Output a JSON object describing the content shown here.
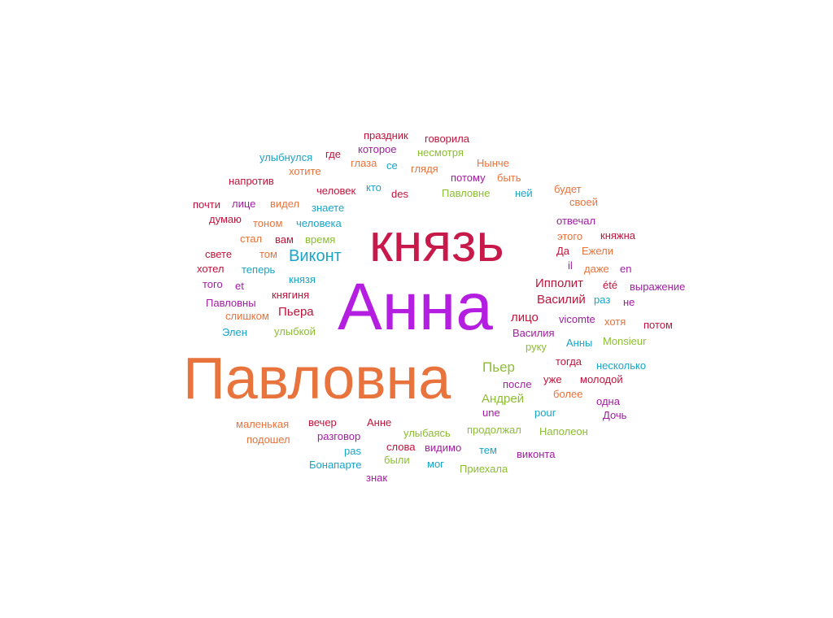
{
  "palette": {
    "crimson": "#c8194b",
    "purple": "#b41ee0",
    "orange": "#e8733c",
    "teal": "#19a5c8",
    "green": "#8cbe32",
    "red": "#c0143c",
    "magenta": "#a01ea0"
  },
  "words": [
    {
      "text": "князь",
      "color": "#c8194b"
    },
    {
      "text": "Анна",
      "color": "#b41ee0"
    },
    {
      "text": "Павловна",
      "color": "#e8733c"
    },
    {
      "text": "Виконт",
      "color": "#19a5c8"
    },
    {
      "text": "праздник",
      "color": "#c0143c"
    },
    {
      "text": "говорила",
      "color": "#c0143c"
    },
    {
      "text": "где",
      "color": "#c0143c"
    },
    {
      "text": "которое",
      "color": "#a01ea0"
    },
    {
      "text": "несмотря",
      "color": "#8cbe32"
    },
    {
      "text": "улыбнулся",
      "color": "#19a5c8"
    },
    {
      "text": "глаза",
      "color": "#e8733c"
    },
    {
      "text": "се",
      "color": "#19a5c8"
    },
    {
      "text": "глядя",
      "color": "#e8733c"
    },
    {
      "text": "Нынче",
      "color": "#e8733c"
    },
    {
      "text": "хотите",
      "color": "#e8733c"
    },
    {
      "text": "потому",
      "color": "#a01ea0"
    },
    {
      "text": "быть",
      "color": "#e8733c"
    },
    {
      "text": "напротив",
      "color": "#c0143c"
    },
    {
      "text": "кто",
      "color": "#19a5c8"
    },
    {
      "text": "человек",
      "color": "#c0143c"
    },
    {
      "text": "des",
      "color": "#c0143c"
    },
    {
      "text": "Павловне",
      "color": "#8cbe32"
    },
    {
      "text": "ней",
      "color": "#19a5c8"
    },
    {
      "text": "будет",
      "color": "#e8733c"
    },
    {
      "text": "почти",
      "color": "#c0143c"
    },
    {
      "text": "лице",
      "color": "#a01ea0"
    },
    {
      "text": "видел",
      "color": "#e8733c"
    },
    {
      "text": "знаете",
      "color": "#19a5c8"
    },
    {
      "text": "своей",
      "color": "#e8733c"
    },
    {
      "text": "думаю",
      "color": "#c0143c"
    },
    {
      "text": "тоном",
      "color": "#e8733c"
    },
    {
      "text": "человека",
      "color": "#19a5c8"
    },
    {
      "text": "отвечал",
      "color": "#a01ea0"
    },
    {
      "text": "этого",
      "color": "#e8733c"
    },
    {
      "text": "княжна",
      "color": "#c0143c"
    },
    {
      "text": "стал",
      "color": "#e8733c"
    },
    {
      "text": "вам",
      "color": "#c0143c"
    },
    {
      "text": "время",
      "color": "#8cbe32"
    },
    {
      "text": "Да",
      "color": "#c0143c"
    },
    {
      "text": "Ежели",
      "color": "#e8733c"
    },
    {
      "text": "свете",
      "color": "#c0143c"
    },
    {
      "text": "том",
      "color": "#e8733c"
    },
    {
      "text": "il",
      "color": "#a01ea0"
    },
    {
      "text": "даже",
      "color": "#e8733c"
    },
    {
      "text": "en",
      "color": "#a01ea0"
    },
    {
      "text": "хотел",
      "color": "#c0143c"
    },
    {
      "text": "теперь",
      "color": "#19a5c8"
    },
    {
      "text": "князя",
      "color": "#19a5c8"
    },
    {
      "text": "Ипполит",
      "color": "#c0143c"
    },
    {
      "text": "того",
      "color": "#a01ea0"
    },
    {
      "text": "et",
      "color": "#a01ea0"
    },
    {
      "text": "été",
      "color": "#c0143c"
    },
    {
      "text": "выражение",
      "color": "#a01ea0"
    },
    {
      "text": "княгиня",
      "color": "#c0143c"
    },
    {
      "text": "Василий",
      "color": "#c0143c"
    },
    {
      "text": "раз",
      "color": "#19a5c8"
    },
    {
      "text": "не",
      "color": "#a01ea0"
    },
    {
      "text": "Павловны",
      "color": "#a01ea0"
    },
    {
      "text": "Пьера",
      "color": "#c0143c"
    },
    {
      "text": "лицо",
      "color": "#c0143c"
    },
    {
      "text": "vicomte",
      "color": "#a01ea0"
    },
    {
      "text": "хотя",
      "color": "#e8733c"
    },
    {
      "text": "слишком",
      "color": "#e8733c"
    },
    {
      "text": "потом",
      "color": "#c0143c"
    },
    {
      "text": "Элен",
      "color": "#19a5c8"
    },
    {
      "text": "улыбкой",
      "color": "#8cbe32"
    },
    {
      "text": "Василия",
      "color": "#a01ea0"
    },
    {
      "text": "Анны",
      "color": "#19a5c8"
    },
    {
      "text": "Monsieur",
      "color": "#8cbe32"
    },
    {
      "text": "руку",
      "color": "#8cbe32"
    },
    {
      "text": "тогда",
      "color": "#c0143c"
    },
    {
      "text": "Пьер",
      "color": "#8cbe32"
    },
    {
      "text": "несколько",
      "color": "#19a5c8"
    },
    {
      "text": "после",
      "color": "#a01ea0"
    },
    {
      "text": "уже",
      "color": "#c0143c"
    },
    {
      "text": "молодой",
      "color": "#c0143c"
    },
    {
      "text": "Андрей",
      "color": "#8cbe32"
    },
    {
      "text": "более",
      "color": "#e8733c"
    },
    {
      "text": "одна",
      "color": "#a01ea0"
    },
    {
      "text": "une",
      "color": "#a01ea0"
    },
    {
      "text": "pour",
      "color": "#19a5c8"
    },
    {
      "text": "Дочь",
      "color": "#a01ea0"
    },
    {
      "text": "маленькая",
      "color": "#e8733c"
    },
    {
      "text": "вечер",
      "color": "#c0143c"
    },
    {
      "text": "Анне",
      "color": "#c0143c"
    },
    {
      "text": "улыбаясь",
      "color": "#8cbe32"
    },
    {
      "text": "продолжал",
      "color": "#8cbe32"
    },
    {
      "text": "Наполеон",
      "color": "#8cbe32"
    },
    {
      "text": "подошел",
      "color": "#e8733c"
    },
    {
      "text": "разговор",
      "color": "#a01ea0"
    },
    {
      "text": "pas",
      "color": "#19a5c8"
    },
    {
      "text": "слова",
      "color": "#c0143c"
    },
    {
      "text": "видимо",
      "color": "#a01ea0"
    },
    {
      "text": "тем",
      "color": "#19a5c8"
    },
    {
      "text": "виконта",
      "color": "#a01ea0"
    },
    {
      "text": "были",
      "color": "#8cbe32"
    },
    {
      "text": "Бонапарте",
      "color": "#19a5c8"
    },
    {
      "text": "мог",
      "color": "#19a5c8"
    },
    {
      "text": "Приехала",
      "color": "#8cbe32"
    },
    {
      "text": "знак",
      "color": "#a01ea0"
    }
  ]
}
